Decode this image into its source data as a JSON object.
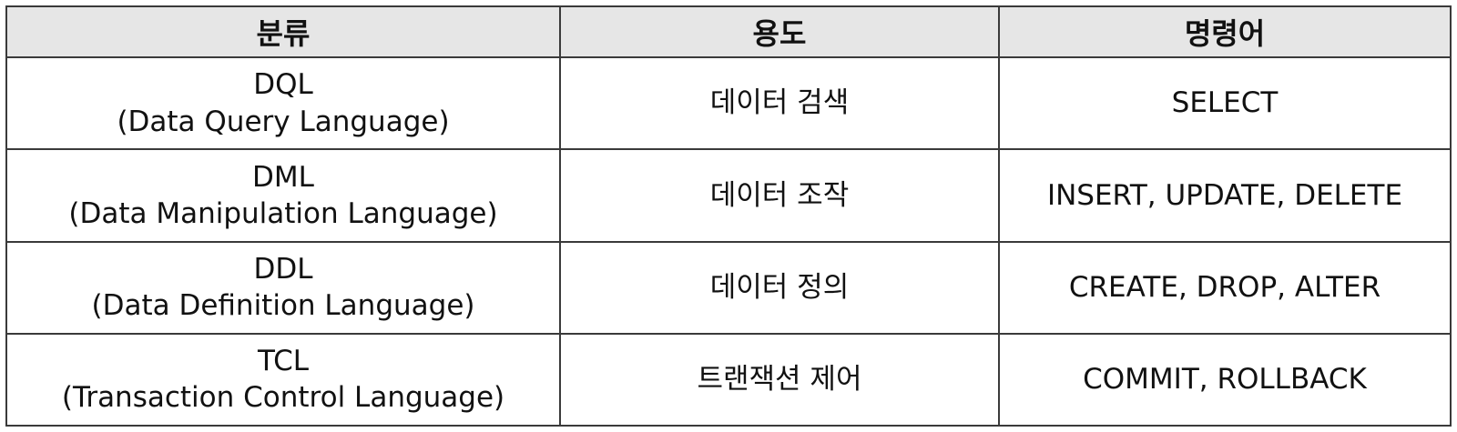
{
  "table": {
    "headers": [
      "분류",
      "용도",
      "명령어"
    ],
    "rows": [
      {
        "abbr": "DQL",
        "full": "(Data Query Language)",
        "purpose": "데이터 검색",
        "commands": "SELECT"
      },
      {
        "abbr": "DML",
        "full": "(Data Manipulation Language)",
        "purpose": "데이터 조작",
        "commands": "INSERT, UPDATE, DELETE"
      },
      {
        "abbr": "DDL",
        "full": "(Data Definition Language)",
        "purpose": "데이터 정의",
        "commands": "CREATE, DROP, ALTER"
      },
      {
        "abbr": "TCL",
        "full": "(Transaction Control Language)",
        "purpose": "트랜잭션 제어",
        "commands": "COMMIT, ROLLBACK"
      }
    ]
  }
}
